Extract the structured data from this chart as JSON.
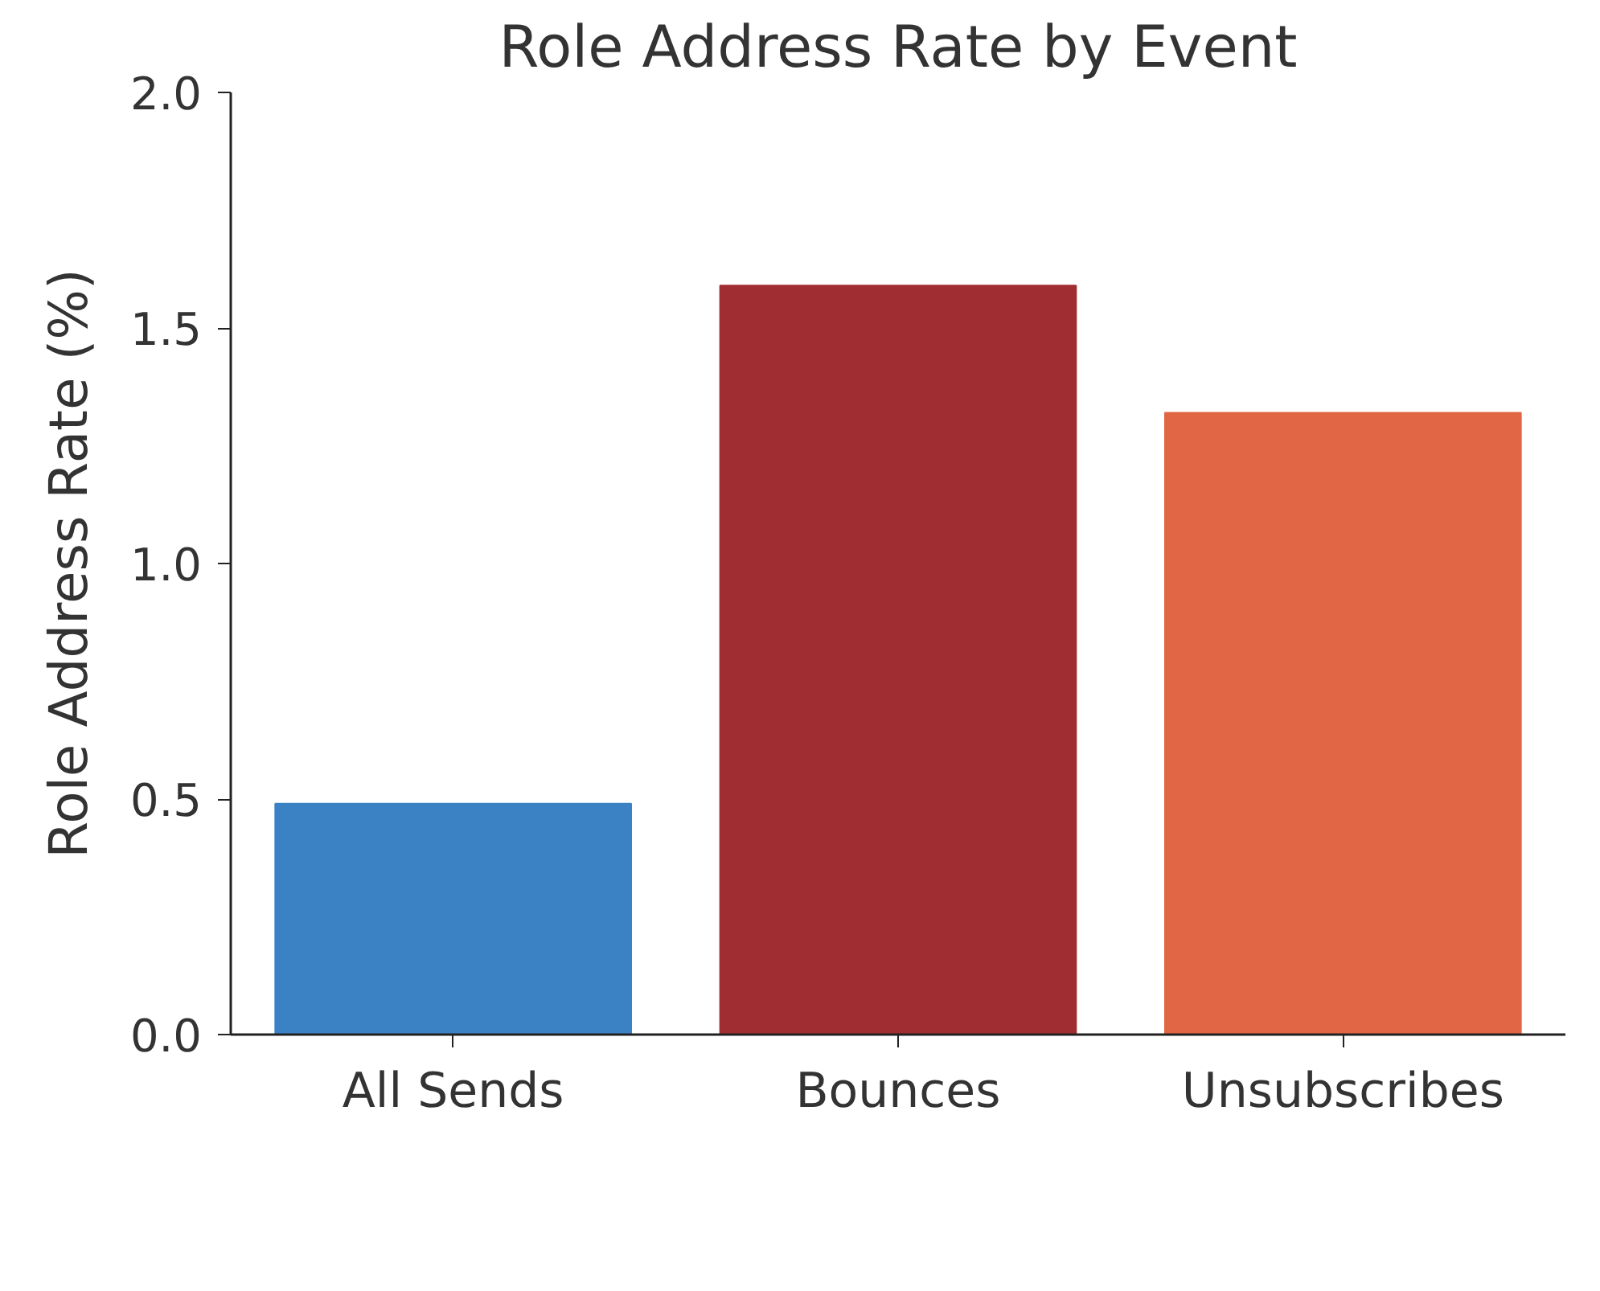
{
  "chart_data": {
    "type": "bar",
    "title": "Role Address Rate by Event",
    "ylabel": "Role Address Rate (%)",
    "categories": [
      "All Sends",
      "Bounces",
      "Unsubscribes"
    ],
    "values": [
      0.49,
      1.59,
      1.32
    ],
    "colors": [
      "#3a82c4",
      "#a02d32",
      "#e06645"
    ],
    "ylim": [
      0,
      2
    ],
    "yticks": [
      {
        "value": 0,
        "label": "0.0"
      },
      0.5,
      {
        "value": 1,
        "label": "1.0"
      },
      1.5,
      {
        "value": 2,
        "label": "2.0"
      }
    ],
    "grid": false
  }
}
